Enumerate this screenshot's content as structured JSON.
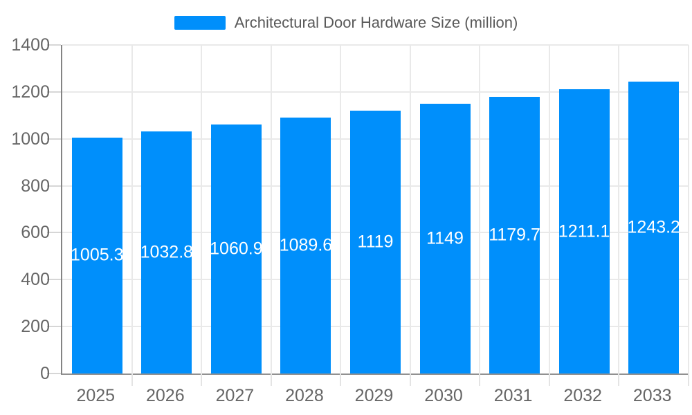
{
  "legend": {
    "label": "Architectural Door Hardware Size (million)",
    "marker_color": "#008FFB"
  },
  "chart_data": {
    "type": "bar",
    "title": "Architectural Door Hardware Size (million)",
    "categories": [
      "2025",
      "2026",
      "2027",
      "2028",
      "2029",
      "2030",
      "2031",
      "2032",
      "2033"
    ],
    "series": [
      {
        "name": "Architectural Door Hardware Size (million)",
        "values": [
          1005.3,
          1032.8,
          1060.9,
          1089.6,
          1119,
          1149,
          1179.7,
          1211.1,
          1243.2
        ]
      }
    ],
    "value_labels": [
      "1005.3",
      "1032.8",
      "1060.9",
      "1089.6",
      "1119",
      "1149",
      "1179.7",
      "1211.1",
      "1243.2"
    ],
    "xlabel": "",
    "ylabel": "",
    "ylim": [
      0,
      1400
    ],
    "ytick_step": 200,
    "yticks": [
      0,
      200,
      400,
      600,
      800,
      1000,
      1200,
      1400
    ],
    "grid": true,
    "legend_position": "top",
    "bar_color": "#008FFB"
  },
  "colors": {
    "bar": "#008FFB",
    "grid": "#e9e9e9",
    "axis": "#8a8a8a",
    "tick_label": "#666666",
    "legend_text": "#595959",
    "value_label": "#ffffff",
    "background": "#ffffff"
  }
}
